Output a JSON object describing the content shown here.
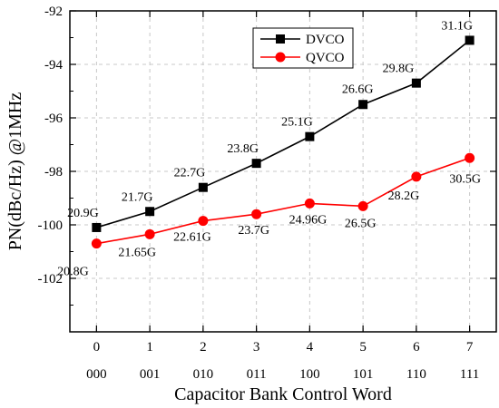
{
  "chart_data": {
    "type": "line",
    "xlabel": "Capacitor Bank Control Word",
    "ylabel": "PN(dBc/Hz) @1MHz",
    "x": [
      0,
      1,
      2,
      3,
      4,
      5,
      6,
      7
    ],
    "x_tick_labels": [
      "0",
      "1",
      "2",
      "3",
      "4",
      "5",
      "6",
      "7"
    ],
    "x_secondary_tick_labels": [
      "000",
      "001",
      "010",
      "011",
      "100",
      "101",
      "110",
      "111"
    ],
    "xlim": [
      -0.5,
      7.5
    ],
    "ylim": [
      -104,
      -92
    ],
    "y_ticks": [
      -102,
      -100,
      -98,
      -96,
      -94,
      -92
    ],
    "y_tick_labels": [
      "-102",
      "-100",
      "-98",
      "-96",
      "-94",
      "-92"
    ],
    "grid": true,
    "legend_position": "top-right",
    "series": [
      {
        "name": "DVCO",
        "color": "#000000",
        "marker": "square",
        "values": [
          -100.1,
          -99.5,
          -98.6,
          -97.7,
          -96.7,
          -95.5,
          -94.7,
          -93.1
        ],
        "point_labels": [
          "20.9G",
          "21.7G",
          "22.7G",
          "23.8G",
          "25.1G",
          "26.6G",
          "29.8G",
          "31.1G"
        ]
      },
      {
        "name": "QVCO",
        "color": "#ff0000",
        "marker": "circle",
        "values": [
          -100.7,
          -100.35,
          -99.85,
          -99.6,
          -99.2,
          -99.3,
          -98.2,
          -97.5
        ],
        "point_labels": [
          "20.8G",
          "21.65G",
          "22.61G",
          "23.7G",
          "24.96G",
          "26.5G",
          "28.2G",
          "30.5G"
        ]
      }
    ]
  }
}
